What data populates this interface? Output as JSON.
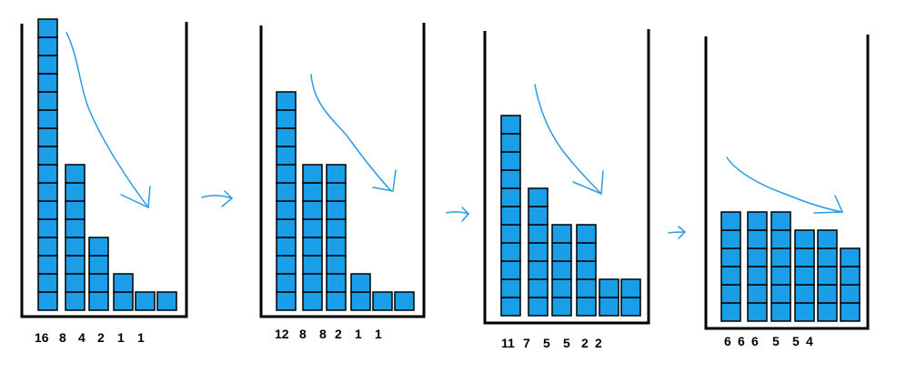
{
  "colors": {
    "block_fill": "#1b9ee8",
    "block_stroke": "#000000",
    "container_stroke": "#000000",
    "arrow": "#2b9be0"
  },
  "panels": [
    {
      "columns": [
        16,
        8,
        4,
        2,
        1,
        1
      ],
      "labels": [
        "16",
        "8",
        "4",
        "2",
        "1",
        "1"
      ]
    },
    {
      "columns": [
        12,
        8,
        8,
        2,
        1,
        1
      ],
      "labels": [
        "12",
        "8",
        "8",
        "2",
        "1",
        "1"
      ]
    },
    {
      "columns": [
        11,
        7,
        5,
        5,
        2,
        2
      ],
      "labels": [
        "11",
        "7",
        "5",
        "5",
        "2",
        "2"
      ]
    },
    {
      "columns": [
        6,
        6,
        6,
        5,
        5,
        4
      ],
      "labels": [
        "6",
        "6",
        "6",
        "5",
        "5",
        "4"
      ]
    }
  ]
}
